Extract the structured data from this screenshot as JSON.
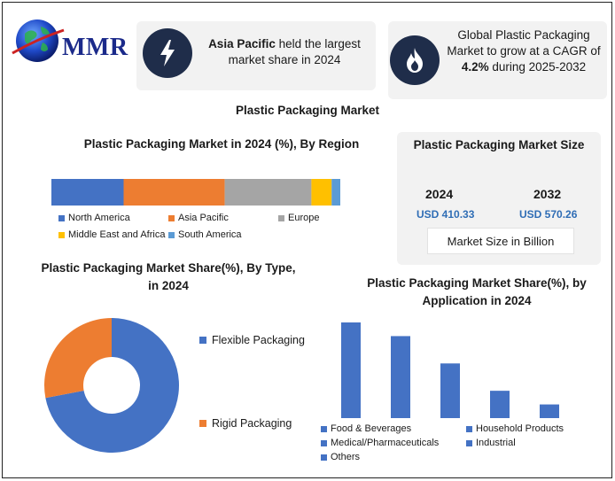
{
  "logo": {
    "text": "MMR",
    "icon": "globe-icon"
  },
  "highlights": [
    {
      "icon": "lightning-icon",
      "bold": "Asia Pacific",
      "text": " held the largest market share in 2024"
    },
    {
      "icon": "flame-icon",
      "text": "Global Plastic Packaging Market to grow at a CAGR of ",
      "bold": "4.2%",
      "text_after": " during 2025-2032"
    }
  ],
  "main_title": "Plastic Packaging Market",
  "market_size": {
    "title": "Plastic Packaging Market Size",
    "years": [
      {
        "year": "2024",
        "value": "USD 410.33"
      },
      {
        "year": "2032",
        "value": "USD 570.26"
      }
    ],
    "unit_label": "Market Size in Billion"
  },
  "colors": {
    "blue": "#4472c4",
    "orange": "#ed7d31",
    "gray": "#a5a5a5",
    "yellow": "#ffc000",
    "light_blue": "#5b9bd5",
    "accent": "#2f6db5",
    "badge": "#1f2d4a"
  },
  "chart_data": [
    {
      "type": "bar",
      "orientation": "horizontal-stacked",
      "title": "Plastic Packaging Market in 2024 (%), By Region",
      "unit": "%",
      "series": [
        {
          "name": "North America",
          "value": 25,
          "color": "#4472c4"
        },
        {
          "name": "Asia Pacific",
          "value": 35,
          "color": "#ed7d31"
        },
        {
          "name": "Europe",
          "value": 30,
          "color": "#a5a5a5"
        },
        {
          "name": "Middle East and Africa",
          "value": 7,
          "color": "#ffc000"
        },
        {
          "name": "South America",
          "value": 3,
          "color": "#5b9bd5"
        }
      ],
      "legend": "bottom"
    },
    {
      "type": "pie",
      "variant": "donut",
      "title": "Plastic Packaging Market Share(%), By Type, in 2024",
      "unit": "%",
      "slices": [
        {
          "name": "Flexible Packaging",
          "value": 72,
          "color": "#4472c4"
        },
        {
          "name": "Rigid Packaging",
          "value": 28,
          "color": "#ed7d31"
        }
      ],
      "legend": "right"
    },
    {
      "type": "bar",
      "title": "Plastic Packaging Market Share(%), by Application in 2024",
      "unit": "%",
      "categories": [
        "Food & Beverages",
        "Household Products",
        "Medical/Pharmaceuticals",
        "Industrial",
        "Others"
      ],
      "values": [
        35,
        30,
        20,
        10,
        5
      ],
      "color": "#4472c4",
      "ylim": [
        0,
        35
      ],
      "legend": "bottom"
    }
  ]
}
